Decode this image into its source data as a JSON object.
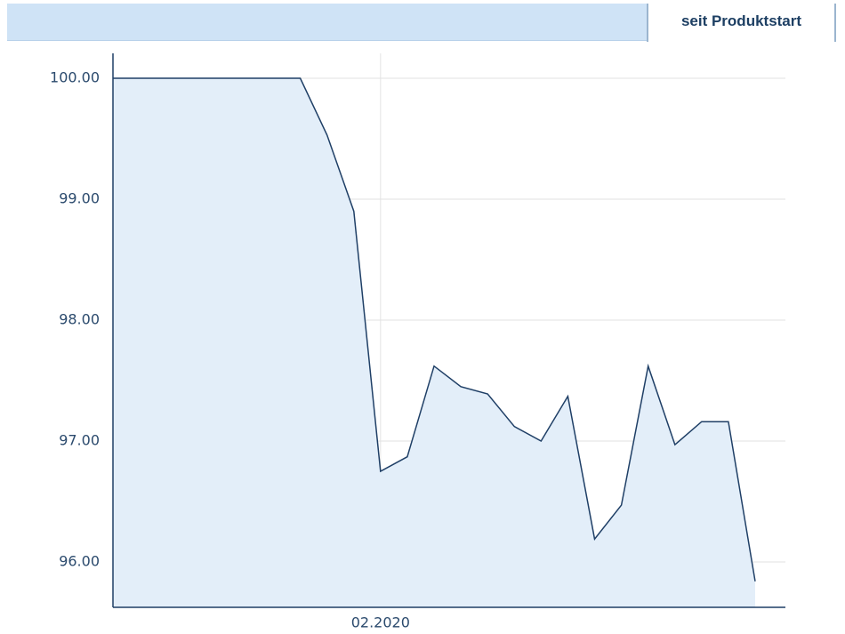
{
  "tab": {
    "label": "seit Produktstart"
  },
  "chart_data": {
    "type": "area",
    "categories": [
      null,
      null,
      null,
      null,
      null,
      null,
      null,
      null,
      null,
      null,
      "02.2020",
      null,
      null,
      null,
      null,
      null,
      null,
      null,
      null,
      null,
      null,
      null,
      null,
      null,
      null
    ],
    "series": [
      {
        "name": null,
        "color": "#1f3f66",
        "values": [
          100,
          100,
          100,
          100,
          100,
          100,
          100,
          100,
          99.53,
          98.9,
          96.75,
          96.87,
          97.62,
          97.45,
          97.39,
          97.12,
          97.0,
          97.37,
          96.19,
          96.47,
          97.62,
          96.97,
          97.16,
          97.16,
          95.84
        ]
      }
    ],
    "fill": "#e3eef9",
    "ylim": [
      95.625,
      100.206
    ],
    "yticks": [
      {
        "value": 96,
        "label": "96.00"
      },
      {
        "value": 97,
        "label": "97.00"
      },
      {
        "value": 98,
        "label": "98.00"
      },
      {
        "value": 99,
        "label": "99.00"
      },
      {
        "value": 100,
        "label": "100.00"
      }
    ],
    "grid": true
  }
}
